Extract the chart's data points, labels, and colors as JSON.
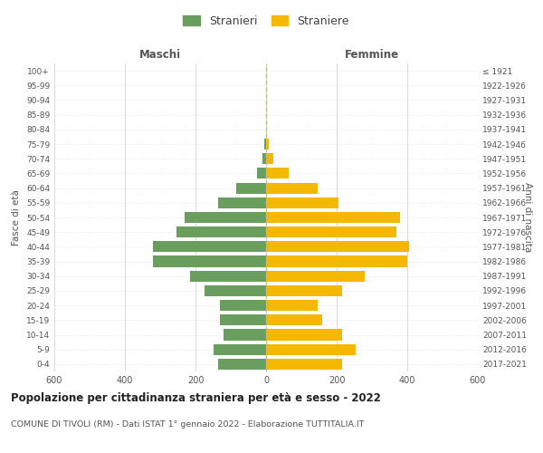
{
  "age_groups": [
    "0-4",
    "5-9",
    "10-14",
    "15-19",
    "20-24",
    "25-29",
    "30-34",
    "35-39",
    "40-44",
    "45-49",
    "50-54",
    "55-59",
    "60-64",
    "65-69",
    "70-74",
    "75-79",
    "80-84",
    "85-89",
    "90-94",
    "95-99",
    "100+"
  ],
  "birth_years": [
    "2017-2021",
    "2012-2016",
    "2007-2011",
    "2002-2006",
    "1997-2001",
    "1992-1996",
    "1987-1991",
    "1982-1986",
    "1977-1981",
    "1972-1976",
    "1967-1971",
    "1962-1966",
    "1957-1961",
    "1952-1956",
    "1947-1951",
    "1942-1946",
    "1937-1941",
    "1932-1936",
    "1927-1931",
    "1922-1926",
    "≤ 1921"
  ],
  "males": [
    135,
    150,
    120,
    130,
    130,
    175,
    215,
    320,
    320,
    255,
    230,
    135,
    85,
    25,
    10,
    5,
    0,
    0,
    0,
    0,
    0
  ],
  "females": [
    215,
    255,
    215,
    160,
    145,
    215,
    280,
    400,
    405,
    370,
    380,
    205,
    145,
    65,
    20,
    8,
    0,
    0,
    0,
    0,
    0
  ],
  "male_color": "#6a9e5e",
  "female_color": "#f5b800",
  "center_line_color": "#c8b87d",
  "grid_color": "#cccccc",
  "grid_color_y": "#dddddd",
  "background_color": "#ffffff",
  "title": "Popolazione per cittadinanza straniera per età e sesso - 2022",
  "subtitle": "COMUNE DI TIVOLI (RM) - Dati ISTAT 1° gennaio 2022 - Elaborazione TUTTITALIA.IT",
  "xlabel_left": "Maschi",
  "xlabel_right": "Femmine",
  "ylabel_left": "Fasce di età",
  "ylabel_right": "Anni di nascita",
  "xlim": 600,
  "legend_male": "Stranieri",
  "legend_female": "Straniere"
}
